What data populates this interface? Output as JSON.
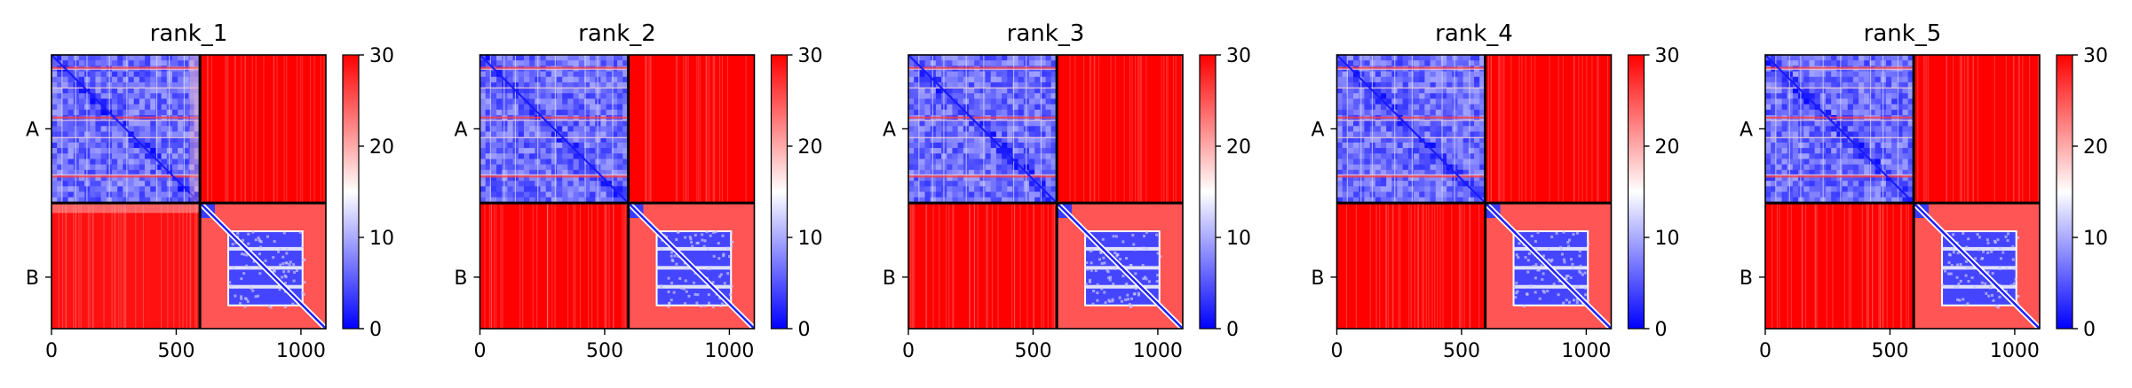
{
  "chart_data": [
    {
      "type": "heatmap",
      "title": "rank_1",
      "xlabel": "",
      "ylabel": "",
      "xlim": [
        0,
        1100
      ],
      "ylim": [
        1100,
        0
      ],
      "x_ticks": [
        0,
        500,
        1000
      ],
      "x_tick_labels": [
        "0",
        "500",
        "1000"
      ],
      "y_ticks": [
        297,
        893
      ],
      "y_tick_labels": [
        "A",
        "B"
      ],
      "chain_lengths": [
        595,
        505
      ],
      "chain_boundaries": [
        0,
        595,
        1100
      ],
      "colorbar": {
        "min": 0,
        "max": 30,
        "ticks": [
          0,
          10,
          20,
          30
        ],
        "tick_labels": [
          "0",
          "10",
          "20",
          "30"
        ],
        "colormap": "bwr"
      },
      "blocks": [
        {
          "rows": "A",
          "cols": "A",
          "mean_value": 5
        },
        {
          "rows": "A",
          "cols": "B",
          "mean_value": 30
        },
        {
          "rows": "B",
          "cols": "A",
          "mean_value": 29
        },
        {
          "rows": "B",
          "cols": "B",
          "mean_value": 25
        }
      ]
    },
    {
      "type": "heatmap",
      "title": "rank_2",
      "xlabel": "",
      "ylabel": "",
      "xlim": [
        0,
        1100
      ],
      "ylim": [
        1100,
        0
      ],
      "x_ticks": [
        0,
        500,
        1000
      ],
      "x_tick_labels": [
        "0",
        "500",
        "1000"
      ],
      "y_ticks": [
        297,
        893
      ],
      "y_tick_labels": [
        "A",
        "B"
      ],
      "chain_lengths": [
        595,
        505
      ],
      "chain_boundaries": [
        0,
        595,
        1100
      ],
      "colorbar": {
        "min": 0,
        "max": 30,
        "ticks": [
          0,
          10,
          20,
          30
        ],
        "tick_labels": [
          "0",
          "10",
          "20",
          "30"
        ],
        "colormap": "bwr"
      },
      "blocks": [
        {
          "rows": "A",
          "cols": "A",
          "mean_value": 5
        },
        {
          "rows": "A",
          "cols": "B",
          "mean_value": 30
        },
        {
          "rows": "B",
          "cols": "A",
          "mean_value": 30
        },
        {
          "rows": "B",
          "cols": "B",
          "mean_value": 25
        }
      ]
    },
    {
      "type": "heatmap",
      "title": "rank_3",
      "xlabel": "",
      "ylabel": "",
      "xlim": [
        0,
        1100
      ],
      "ylim": [
        1100,
        0
      ],
      "x_ticks": [
        0,
        500,
        1000
      ],
      "x_tick_labels": [
        "0",
        "500",
        "1000"
      ],
      "y_ticks": [
        297,
        893
      ],
      "y_tick_labels": [
        "A",
        "B"
      ],
      "chain_lengths": [
        595,
        505
      ],
      "chain_boundaries": [
        0,
        595,
        1100
      ],
      "colorbar": {
        "min": 0,
        "max": 30,
        "ticks": [
          0,
          10,
          20,
          30
        ],
        "tick_labels": [
          "0",
          "10",
          "20",
          "30"
        ],
        "colormap": "bwr"
      },
      "blocks": [
        {
          "rows": "A",
          "cols": "A",
          "mean_value": 5
        },
        {
          "rows": "A",
          "cols": "B",
          "mean_value": 30
        },
        {
          "rows": "B",
          "cols": "A",
          "mean_value": 30
        },
        {
          "rows": "B",
          "cols": "B",
          "mean_value": 25
        }
      ]
    },
    {
      "type": "heatmap",
      "title": "rank_4",
      "xlabel": "",
      "ylabel": "",
      "xlim": [
        0,
        1100
      ],
      "ylim": [
        1100,
        0
      ],
      "x_ticks": [
        0,
        500,
        1000
      ],
      "x_tick_labels": [
        "0",
        "500",
        "1000"
      ],
      "y_ticks": [
        297,
        893
      ],
      "y_tick_labels": [
        "A",
        "B"
      ],
      "chain_lengths": [
        595,
        505
      ],
      "chain_boundaries": [
        0,
        595,
        1100
      ],
      "colorbar": {
        "min": 0,
        "max": 30,
        "ticks": [
          0,
          10,
          20,
          30
        ],
        "tick_labels": [
          "0",
          "10",
          "20",
          "30"
        ],
        "colormap": "bwr"
      },
      "blocks": [
        {
          "rows": "A",
          "cols": "A",
          "mean_value": 5
        },
        {
          "rows": "A",
          "cols": "B",
          "mean_value": 30
        },
        {
          "rows": "B",
          "cols": "A",
          "mean_value": 30
        },
        {
          "rows": "B",
          "cols": "B",
          "mean_value": 25
        }
      ]
    },
    {
      "type": "heatmap",
      "title": "rank_5",
      "xlabel": "",
      "ylabel": "",
      "xlim": [
        0,
        1100
      ],
      "ylim": [
        1100,
        0
      ],
      "x_ticks": [
        0,
        500,
        1000
      ],
      "x_tick_labels": [
        "0",
        "500",
        "1000"
      ],
      "y_ticks": [
        297,
        893
      ],
      "y_tick_labels": [
        "A",
        "B"
      ],
      "chain_lengths": [
        595,
        505
      ],
      "chain_boundaries": [
        0,
        595,
        1100
      ],
      "colorbar": {
        "min": 0,
        "max": 30,
        "ticks": [
          0,
          10,
          20,
          30
        ],
        "tick_labels": [
          "0",
          "10",
          "20",
          "30"
        ],
        "colormap": "bwr"
      },
      "blocks": [
        {
          "rows": "A",
          "cols": "A",
          "mean_value": 5
        },
        {
          "rows": "A",
          "cols": "B",
          "mean_value": 30
        },
        {
          "rows": "B",
          "cols": "A",
          "mean_value": 30
        },
        {
          "rows": "B",
          "cols": "B",
          "mean_value": 25
        }
      ]
    }
  ],
  "colors": {
    "low": "#0000ff",
    "mid": "#ffffff",
    "high": "#ff0000",
    "frame": "#000000"
  }
}
